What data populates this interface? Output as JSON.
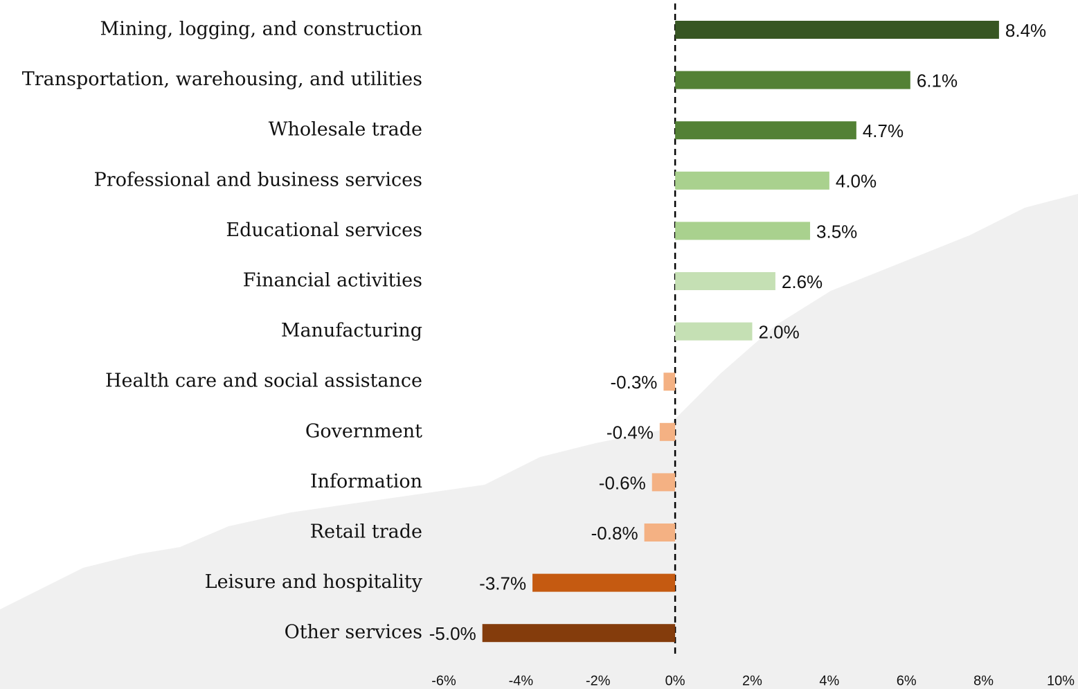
{
  "chart_data": {
    "type": "hbar",
    "categories": [
      "Mining, logging, and construction",
      "Transportation, warehousing, and utilities",
      "Wholesale trade",
      "Professional and business services",
      "Educational services",
      "Financial activities",
      "Manufacturing",
      "Health care and social assistance",
      "Government",
      "Information",
      "Retail trade",
      "Leisure and hospitality",
      "Other services"
    ],
    "values": [
      8.4,
      6.1,
      4.7,
      4.0,
      3.5,
      2.6,
      2.0,
      -0.3,
      -0.4,
      -0.6,
      -0.8,
      -3.7,
      -5.0
    ],
    "value_labels": [
      "8.4%",
      "6.1%",
      "4.7%",
      "4.0%",
      "3.5%",
      "2.6%",
      "2.0%",
      "-0.3%",
      "-0.4%",
      "-0.6%",
      "-0.8%",
      "-3.7%",
      "-5.0%"
    ],
    "colors": [
      "#375623",
      "#538135",
      "#538135",
      "#a9d18e",
      "#a9d18e",
      "#c5e0b4",
      "#c5e0b4",
      "#f4b183",
      "#f4b183",
      "#f4b183",
      "#f4b183",
      "#c55a11",
      "#843c0c"
    ],
    "xlim": [
      -6,
      10
    ],
    "xticks": [
      {
        "value": -6,
        "label": "-6%"
      },
      {
        "value": -4,
        "label": "-4%"
      },
      {
        "value": -2,
        "label": "-2%"
      },
      {
        "value": 0,
        "label": "0%"
      },
      {
        "value": 2,
        "label": "2%"
      },
      {
        "value": 4,
        "label": "4%"
      },
      {
        "value": 6,
        "label": "6%"
      },
      {
        "value": 8,
        "label": "8%"
      },
      {
        "value": 10,
        "label": "10%"
      }
    ],
    "zero_line": true
  }
}
